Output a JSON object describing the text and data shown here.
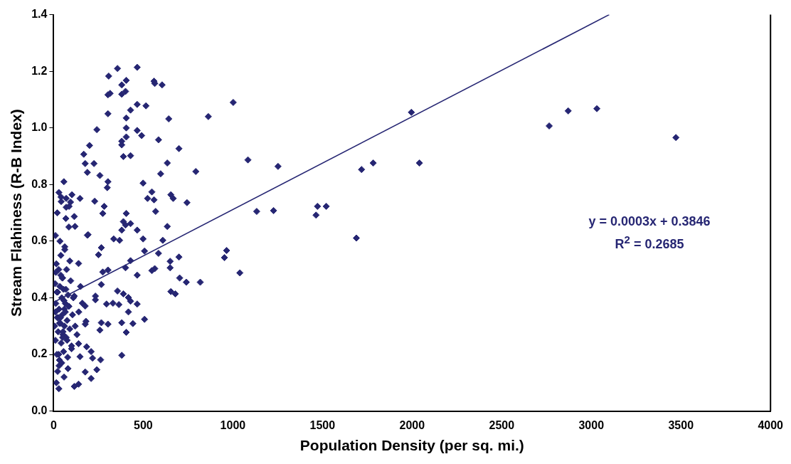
{
  "chart_data": {
    "type": "scatter",
    "xlabel": "Population Density (per sq. mi.)",
    "ylabel": "Stream Flahiness (R-B Index)",
    "xlim": [
      0,
      4000
    ],
    "xticks": [
      0,
      500,
      1000,
      1500,
      2000,
      2500,
      3000,
      3500,
      4000
    ],
    "ylim": [
      0,
      1.4
    ],
    "yticks": [
      {
        "value": 0,
        "label": "0.0"
      },
      {
        "value": 0.2,
        "label": "0.2"
      },
      {
        "value": 0.4,
        "label": "0.4"
      },
      {
        "value": 0.6,
        "label": "0.6"
      },
      {
        "value": 0.8,
        "label": "0.8"
      },
      {
        "value": 1,
        "label": "1.0"
      },
      {
        "value": 1.2,
        "label": "1.2"
      },
      {
        "value": 1.4,
        "label": "1.4"
      }
    ],
    "grid": false,
    "legend": false,
    "annotations": [
      "y = 0.0003x + 0.3846",
      "R$^{2}$ = 0.2685"
    ],
    "series": [
      {
        "type": "scatter",
        "marker": "diamond",
        "color": "#262673",
        "x": [
          2765,
          2871,
          3031,
          3472,
          1996,
          1252,
          1718,
          1783,
          2041,
          1133,
          1227,
          1472,
          1521,
          1464,
          1689,
          1084,
          1002,
          863,
          793,
          356,
          466,
          307,
          560,
          564,
          605,
          405,
          380,
          303,
          315,
          380,
          401,
          466,
          515,
          303,
          429,
          405,
          642,
          405,
          241,
          466,
          491,
          405,
          380,
          380,
          585,
          699,
          200,
          168,
          176,
          225,
          188,
          258,
          389,
          429,
          634,
          597,
          303,
          299,
          499,
          57,
          548,
          524,
          560,
          654,
          667,
          744,
          147,
          102,
          229,
          282,
          274,
          569,
          405,
          115,
          119,
          188,
          389,
          401,
          429,
          380,
          466,
          634,
          29,
          41,
          70,
          86,
          94,
          335,
          368,
          499,
          507,
          609,
          266,
          250,
          585,
          965,
          953,
          699,
          650,
          650,
          429,
          401,
          274,
          303,
          466,
          548,
          564,
          1039,
          703,
          740,
          818,
          654,
          679,
          356,
          389,
          417,
          429,
          466,
          364,
          295,
          331,
          417,
          507,
          380,
          442,
          303,
          266,
          258,
          405,
          380,
          262,
          209,
          217,
          147,
          176,
          241,
          209,
          139,
          115,
          29,
          184,
          139,
          233,
          233,
          115,
          176,
          180,
          160,
          176,
          139,
          266,
          192,
          5,
          8,
          10,
          12,
          15,
          18,
          20,
          22,
          25,
          28,
          30,
          32,
          35,
          38,
          40,
          42,
          45,
          48,
          50,
          52,
          55,
          58,
          60,
          62,
          65,
          68,
          70,
          72,
          75,
          78,
          80,
          85,
          90,
          95,
          100,
          105,
          110,
          120,
          130,
          140,
          150,
          10,
          20,
          30,
          40,
          50,
          60,
          70,
          80,
          90,
          100,
          15,
          25,
          35,
          45,
          55,
          65,
          75,
          85,
          12,
          22,
          32,
          42,
          52,
          62,
          18,
          28,
          38,
          48,
          58,
          68,
          10
        ],
        "values": [
          1.007,
          1.06,
          1.068,
          0.966,
          1.055,
          0.864,
          0.853,
          0.876,
          0.876,
          0.705,
          0.708,
          0.723,
          0.723,
          0.692,
          0.611,
          0.887,
          1.09,
          1.04,
          0.846,
          1.21,
          1.214,
          1.183,
          1.165,
          1.157,
          1.152,
          1.168,
          1.152,
          1.117,
          1.122,
          1.119,
          1.129,
          1.083,
          1.078,
          1.05,
          1.063,
          1.035,
          1.032,
          1.0,
          0.994,
          0.991,
          0.973,
          0.968,
          0.953,
          0.94,
          0.958,
          0.927,
          0.938,
          0.907,
          0.874,
          0.874,
          0.843,
          0.832,
          0.899,
          0.902,
          0.876,
          0.838,
          0.81,
          0.789,
          0.805,
          0.81,
          0.774,
          0.751,
          0.746,
          0.764,
          0.751,
          0.736,
          0.751,
          0.764,
          0.741,
          0.723,
          0.698,
          0.705,
          0.698,
          0.687,
          0.652,
          0.621,
          0.669,
          0.657,
          0.662,
          0.639,
          0.639,
          0.652,
          0.772,
          0.756,
          0.751,
          0.723,
          0.738,
          0.608,
          0.603,
          0.608,
          0.565,
          0.603,
          0.577,
          0.552,
          0.557,
          0.567,
          0.542,
          0.544,
          0.529,
          0.506,
          0.531,
          0.506,
          0.491,
          0.498,
          0.48,
          0.496,
          0.503,
          0.488,
          0.47,
          0.455,
          0.455,
          0.422,
          0.414,
          0.424,
          0.414,
          0.401,
          0.388,
          0.378,
          0.376,
          0.378,
          0.381,
          0.35,
          0.324,
          0.312,
          0.309,
          0.307,
          0.312,
          0.286,
          0.278,
          0.197,
          0.181,
          0.21,
          0.187,
          0.192,
          0.138,
          0.146,
          0.115,
          0.095,
          0.087,
          0.079,
          0.227,
          0.238,
          0.393,
          0.406,
          0.406,
          0.307,
          0.317,
          0.381,
          0.371,
          0.521,
          0.447,
          0.623,
          0.3,
          0.45,
          0.25,
          0.38,
          0.52,
          0.2,
          0.33,
          0.42,
          0.28,
          0.5,
          0.36,
          0.18,
          0.44,
          0.31,
          0.55,
          0.24,
          0.4,
          0.34,
          0.47,
          0.27,
          0.21,
          0.39,
          0.3,
          0.58,
          0.35,
          0.43,
          0.26,
          0.5,
          0.32,
          0.19,
          0.41,
          0.37,
          0.29,
          0.46,
          0.22,
          0.34,
          0.4,
          0.3,
          0.27,
          0.35,
          0.44,
          0.62,
          0.7,
          0.16,
          0.48,
          0.26,
          0.36,
          0.72,
          0.15,
          0.53,
          0.23,
          0.1,
          0.33,
          0.6,
          0.17,
          0.43,
          0.38,
          0.25,
          0.65,
          0.49,
          0.14,
          0.31,
          0.74,
          0.28,
          0.57,
          0.42,
          0.2,
          0.33,
          0.47,
          0.12,
          0.68,
          0.35
        ]
      },
      {
        "type": "line",
        "marker": "none",
        "color": "#262673",
        "x": [
          0,
          3100
        ],
        "values": [
          0.384,
          1.4
        ]
      }
    ]
  }
}
